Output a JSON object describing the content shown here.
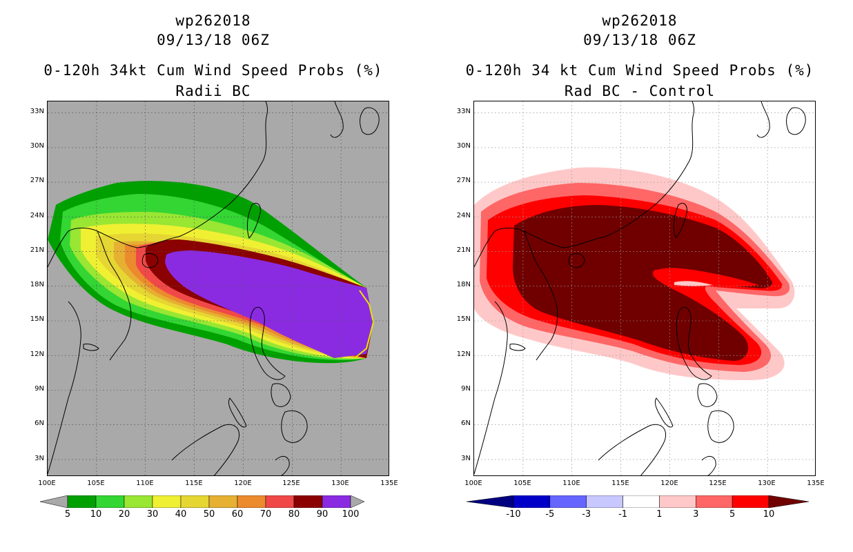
{
  "left": {
    "storm_id": "wp262018",
    "datetime": "09/13/18 06Z",
    "title": "0-120h 34kt Cum Wind Speed Probs (%)",
    "subtitle": "Radii BC",
    "colorbar": {
      "ticks": [
        "5",
        "10",
        "20",
        "30",
        "40",
        "50",
        "60",
        "70",
        "80",
        "90",
        "100"
      ],
      "colors": [
        "#00a000",
        "#33d633",
        "#99e633",
        "#f0f033",
        "#e6d633",
        "#e6b033",
        "#ec8a2e",
        "#f04848",
        "#8b0000",
        "#8a2be2"
      ],
      "left_arrow_color": "#a9a9a9",
      "right_arrow_color": "#a9a9a9"
    }
  },
  "right": {
    "storm_id": "wp262018",
    "datetime": "09/13/18 06Z",
    "title": "0-120h 34 kt Cum Wind Speed Probs (%)",
    "subtitle": "Rad BC - Control",
    "colorbar": {
      "ticks": [
        "-10",
        "-5",
        "-3",
        "-1",
        "1",
        "3",
        "5",
        "10"
      ],
      "colors": [
        "#0000c8",
        "#6666ff",
        "#c8c8ff",
        "#ffffff",
        "#ffc8c8",
        "#ff6666",
        "#ff0000"
      ],
      "left_arrow_color": "#000080",
      "right_arrow_color": "#700000"
    }
  },
  "axes": {
    "lat_labels": [
      "33N",
      "30N",
      "27N",
      "24N",
      "21N",
      "18N",
      "15N",
      "12N",
      "9N",
      "6N",
      "3N"
    ],
    "lon_labels": [
      "100E",
      "105E",
      "110E",
      "115E",
      "120E",
      "125E",
      "130E",
      "135E"
    ],
    "lon_range": [
      100,
      135
    ],
    "lat_range": [
      1.5,
      34
    ]
  },
  "colors": {
    "land_outline": "#000000",
    "left_background": "#a9a9a9",
    "right_background": "#ffffff"
  }
}
